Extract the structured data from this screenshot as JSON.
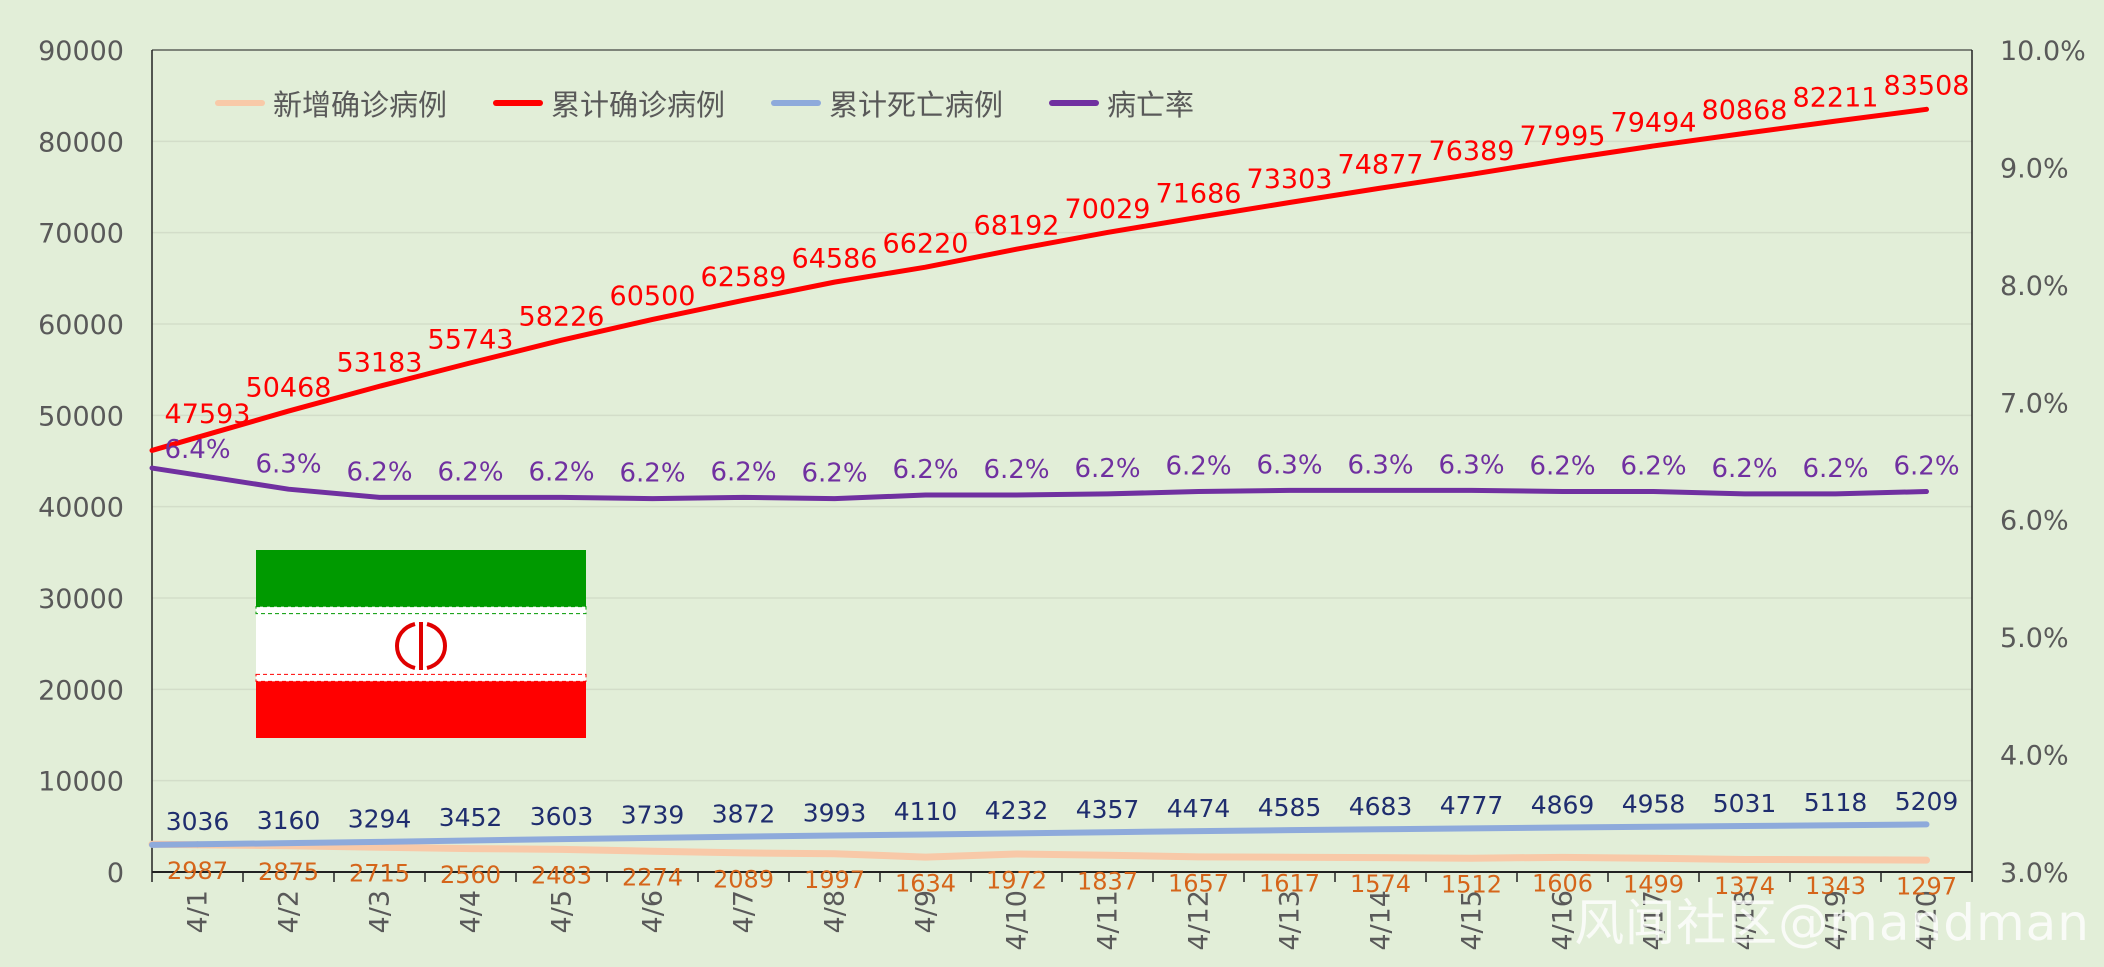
{
  "chart_data": {
    "type": "line",
    "categories": [
      "4/1",
      "4/2",
      "4/3",
      "4/4",
      "4/5",
      "4/6",
      "4/7",
      "4/8",
      "4/9",
      "4/10",
      "4/11",
      "4/12",
      "4/13",
      "4/14",
      "4/15",
      "4/16",
      "4/17",
      "4/18",
      "4/19",
      "4/20"
    ],
    "series": [
      {
        "name": "新增确诊病例",
        "axis": "left",
        "color": "#f8c9a8",
        "label_color": "#d5651a",
        "values": [
          2987,
          2875,
          2715,
          2560,
          2483,
          2274,
          2089,
          1997,
          1634,
          1972,
          1837,
          1657,
          1617,
          1574,
          1512,
          1606,
          1499,
          1374,
          1343,
          1297
        ],
        "labels": [
          "2987",
          "2875",
          "2715",
          "2560",
          "2483",
          "2274",
          "2089",
          "1997",
          "1634",
          "1972",
          "1837",
          "1657",
          "1617",
          "1574",
          "1512",
          "1606",
          "1499",
          "1374",
          "1343",
          "1297"
        ]
      },
      {
        "name": "累计确诊病例",
        "axis": "left",
        "color": "#ff0000",
        "label_color": "#ff0000",
        "values": [
          47593,
          50468,
          53183,
          55743,
          58226,
          60500,
          62589,
          64586,
          66220,
          68192,
          70029,
          71686,
          73303,
          74877,
          76389,
          77995,
          79494,
          80868,
          82211,
          83508
        ],
        "labels": [
          "47593",
          "50468",
          "53183",
          "55743",
          "58226",
          "60500",
          "62589",
          "64586",
          "66220",
          "68192",
          "70029",
          "71686",
          "73303",
          "74877",
          "76389",
          "77995",
          "79494",
          "80868",
          "82211",
          "83508"
        ]
      },
      {
        "name": "累计死亡病例",
        "axis": "left",
        "color": "#8eaadb",
        "label_color": "#1f2d6e",
        "values": [
          3036,
          3160,
          3294,
          3452,
          3603,
          3739,
          3872,
          3993,
          4110,
          4232,
          4357,
          4474,
          4585,
          4683,
          4777,
          4869,
          4958,
          5031,
          5118,
          5209
        ],
        "labels": [
          "3036",
          "3160",
          "3294",
          "3452",
          "3603",
          "3739",
          "3872",
          "3993",
          "4110",
          "4232",
          "4357",
          "4474",
          "4585",
          "4683",
          "4777",
          "4869",
          "4958",
          "5031",
          "5118",
          "5209"
        ]
      },
      {
        "name": "病亡率",
        "axis": "right",
        "color": "#7030a0",
        "label_color": "#7030a0",
        "values": [
          6.38,
          6.26,
          6.19,
          6.19,
          6.19,
          6.18,
          6.19,
          6.18,
          6.21,
          6.21,
          6.22,
          6.24,
          6.25,
          6.25,
          6.25,
          6.24,
          6.24,
          6.22,
          6.22,
          6.24
        ],
        "labels": [
          "6.4%",
          "6.3%",
          "6.2%",
          "6.2%",
          "6.2%",
          "6.2%",
          "6.2%",
          "6.2%",
          "6.2%",
          "6.2%",
          "6.2%",
          "6.2%",
          "6.3%",
          "6.3%",
          "6.3%",
          "6.2%",
          "6.2%",
          "6.2%",
          "6.2%",
          "6.2%"
        ]
      }
    ],
    "y_left": {
      "range": [
        0,
        90000
      ],
      "ticks": [
        "0",
        "10000",
        "20000",
        "30000",
        "40000",
        "50000",
        "60000",
        "70000",
        "80000",
        "90000"
      ]
    },
    "y_right": {
      "range": [
        3.0,
        10.0
      ],
      "ticks": [
        "3.0%",
        "4.0%",
        "5.0%",
        "6.0%",
        "7.0%",
        "8.0%",
        "9.0%",
        "10.0%"
      ]
    },
    "grid": true,
    "legend_position": "top-left",
    "title": "",
    "xlabel": "",
    "ylabel": ""
  },
  "decorations": {
    "flag": "iran-flag",
    "watermark": "风闻社区@mandman"
  },
  "colors": {
    "background": "#e2eed8",
    "grid": "#d5dfcd",
    "axis_text": "#595959"
  }
}
